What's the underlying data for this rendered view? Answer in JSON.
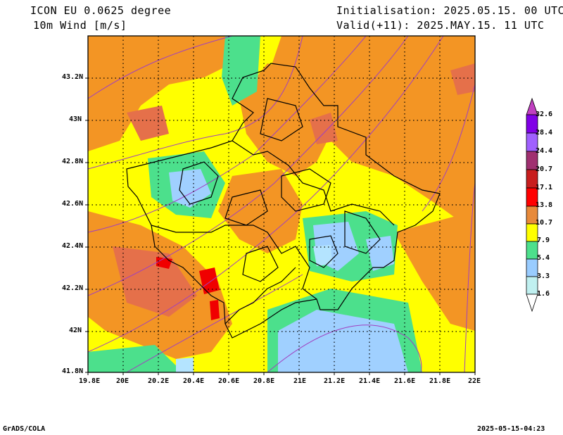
{
  "header": {
    "model": "ICON EU 0.0625 degree",
    "variable": "10m Wind [m/s]",
    "init": "Initialisation: 2025.05.15. 00 UTC",
    "valid": "Valid(+11): 2025.MAY.15. 11 UTC"
  },
  "footer": {
    "left": "GrADS/COLA",
    "right": "2025-05-15-04:23"
  },
  "map": {
    "x_ticks": [
      "19.8E",
      "20E",
      "20.2E",
      "20.4E",
      "20.6E",
      "20.8E",
      "21E",
      "21.2E",
      "21.4E",
      "21.6E",
      "21.8E",
      "22E"
    ],
    "y_ticks": [
      "43.2N",
      "43N",
      "42.8N",
      "42.6N",
      "42.4N",
      "42.2N",
      "42N",
      "41.8N"
    ]
  },
  "colorbar": {
    "labels": [
      "32.6",
      "28.4",
      "24.4",
      "20.7",
      "17.1",
      "13.8",
      "10.7",
      "7.9",
      "5.4",
      "3.3",
      "1.6"
    ],
    "colors": [
      "#8000e6",
      "#a060ff",
      "#9a3a8a",
      "#c81e1e",
      "#ff0000",
      "#e88a3a",
      "#ff8c00",
      "#ffff00",
      "#4de08c",
      "#99ccff",
      "#c0f0f0"
    ]
  },
  "palette": {
    "yellow": "#ffff00",
    "orange": "#f39524",
    "darkorange": "#e5704a",
    "red": "#f00000",
    "green": "#4ce08c",
    "blue": "#a0d0ff",
    "lightblue": "#b4e4ff",
    "purple": "#a040c0"
  }
}
